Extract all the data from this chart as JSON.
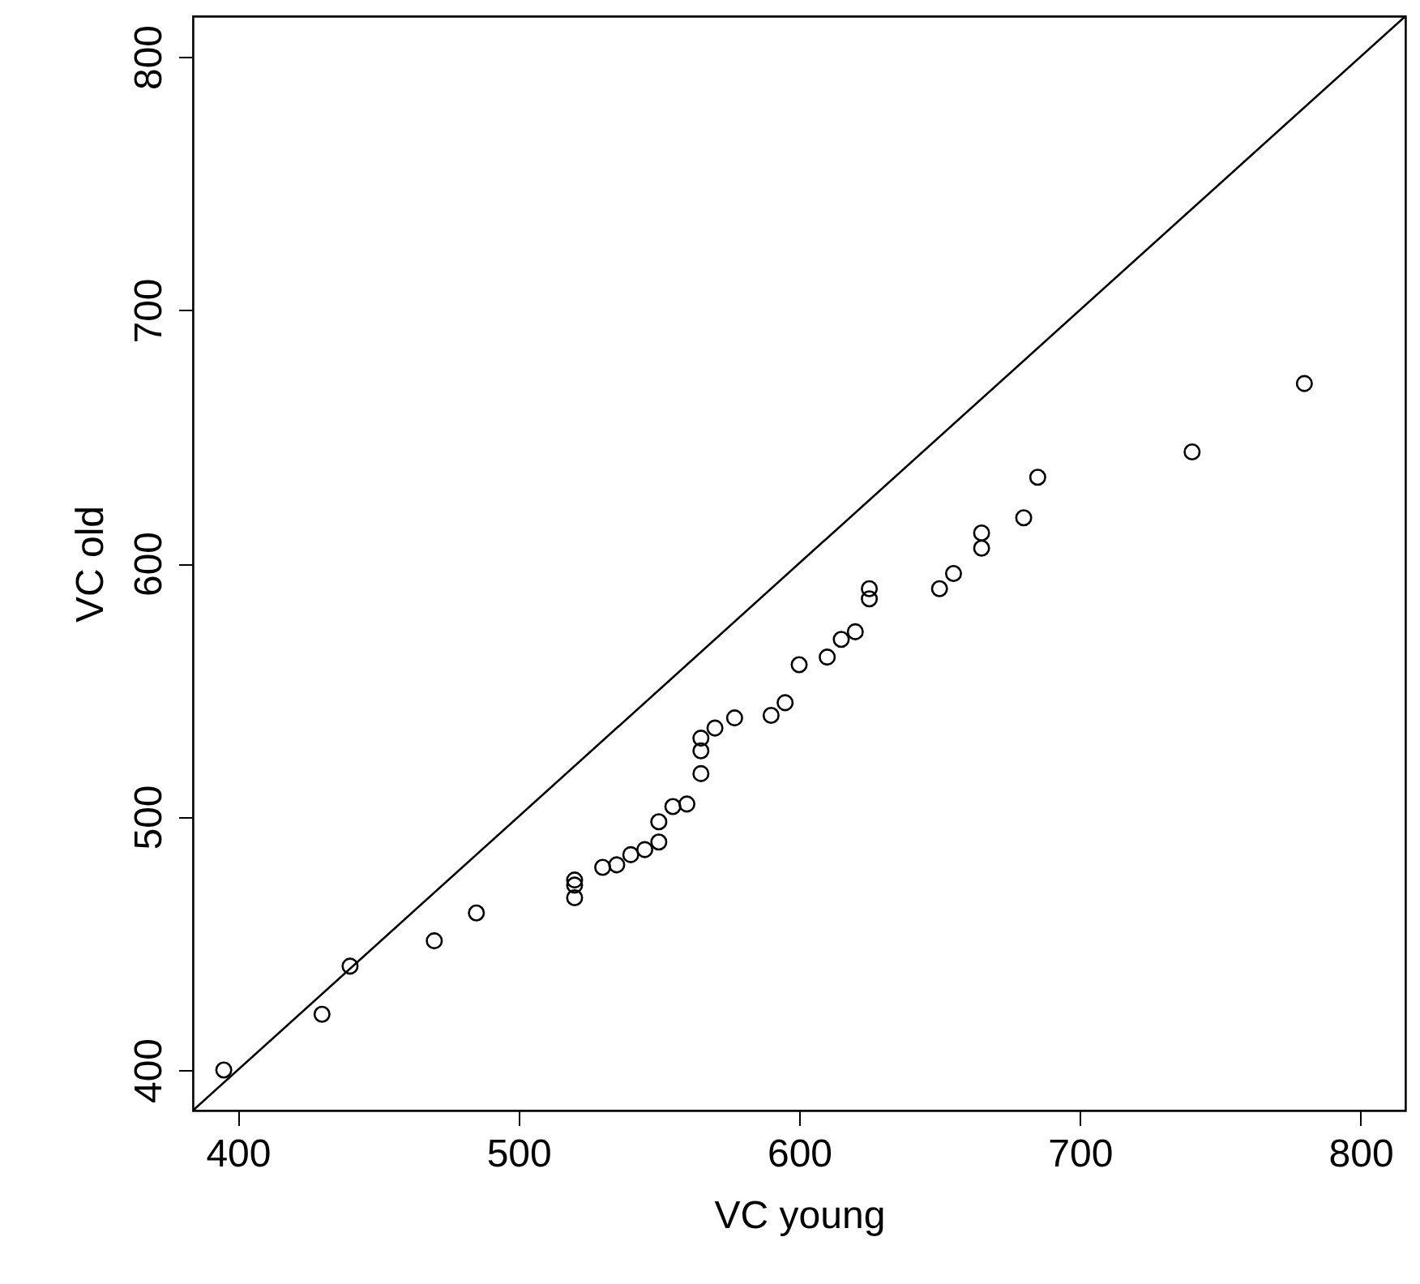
{
  "chart_data": {
    "type": "scatter",
    "xlabel": "VC young",
    "ylabel": "VC old",
    "xlim": [
      384,
      816
    ],
    "ylim": [
      384,
      816
    ],
    "xticks": [
      400,
      500,
      600,
      700,
      800
    ],
    "yticks": [
      400,
      500,
      600,
      700,
      800
    ],
    "grid": false,
    "series": [
      {
        "color": "#000000",
        "marker": "circle",
        "x": [
          395,
          430,
          440,
          470,
          485,
          520,
          520,
          520,
          530,
          535,
          540,
          545,
          550,
          550,
          555,
          560,
          565,
          565,
          565,
          570,
          577,
          590,
          595,
          600,
          610,
          615,
          620,
          625,
          625,
          650,
          655,
          665,
          665,
          680,
          685,
          740,
          780
        ],
        "values": [
          400,
          422,
          441,
          451,
          462,
          475,
          473,
          468,
          480,
          481,
          485,
          487,
          490,
          498,
          504,
          505,
          517,
          526,
          531,
          535,
          539,
          540,
          545,
          560,
          563,
          570,
          573,
          590,
          586,
          590,
          596,
          606,
          612,
          618,
          634,
          644,
          671
        ]
      },
      {
        "type": "line",
        "color": "#000000",
        "x": [
          384,
          816
        ],
        "values": [
          384,
          816
        ]
      }
    ]
  }
}
